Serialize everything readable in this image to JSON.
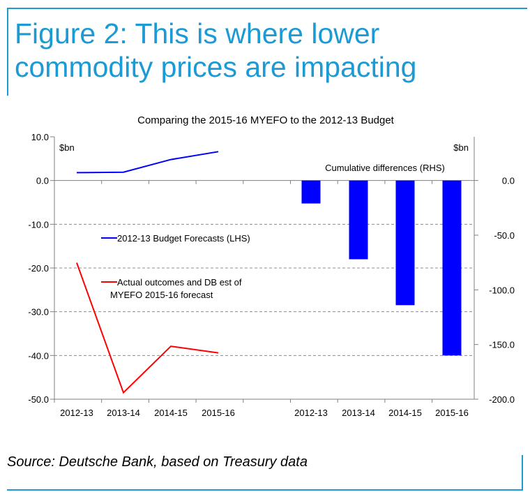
{
  "header": {
    "title_line1": "Figure 2: This is where lower",
    "title_line2": "commodity prices are impacting"
  },
  "footer": {
    "source": "Source: Deutsche Bank, based on Treasury data"
  },
  "colors": {
    "accent": "#1b9ad6",
    "budget_line": "#0000ff",
    "actual_line": "#ff0000",
    "bars": "#0000ff"
  },
  "chart_data": [
    {
      "type": "line",
      "title": "Comparing the 2015-16 MYEFO to the 2012-13 Budget",
      "ylabel": "$bn",
      "ylim": [
        -50,
        10
      ],
      "yticks": [
        "10.0",
        "0.0",
        "-10.0",
        "-20.0",
        "-30.0",
        "-40.0",
        "-50.0"
      ],
      "categories": [
        "2012-13",
        "2013-14",
        "2014-15",
        "2015-16"
      ],
      "series": [
        {
          "name": "2012-13 Budget Forecasts (LHS)",
          "values": [
            1.8,
            1.9,
            4.8,
            6.6
          ]
        },
        {
          "name": "Actual outcomes and DB est of MYEFO 2015-16 forecast",
          "values": [
            -18.8,
            -48.5,
            -37.9,
            -39.4
          ]
        }
      ],
      "grid": "horizontal dashed"
    },
    {
      "type": "bar",
      "title": "Cumulative differences (RHS)",
      "ylabel": "$bn",
      "ylim": [
        -200,
        0
      ],
      "yticks": [
        "0.0",
        "-50.0",
        "-100.0",
        "-150.0",
        "-200.0"
      ],
      "categories": [
        "2012-13",
        "2013-14",
        "2014-15",
        "2015-16"
      ],
      "values": [
        -21,
        -72,
        -114,
        -160
      ]
    }
  ]
}
